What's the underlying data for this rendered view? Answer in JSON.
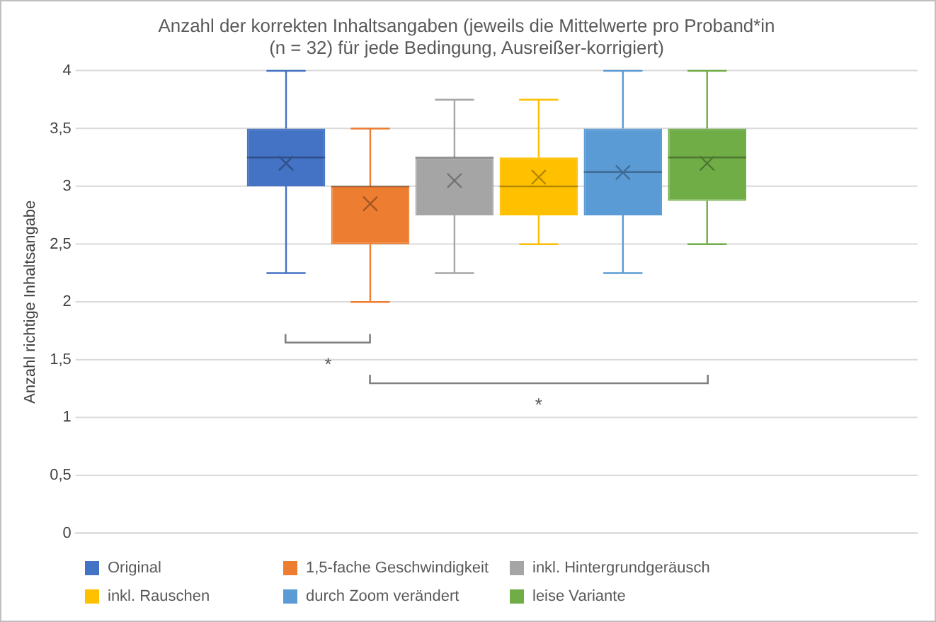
{
  "chart_data": {
    "type": "box",
    "title": "Anzahl der korrekten Inhaltsangaben (jeweils die Mittelwerte pro Proband*in\n(n = 32) für jede Bedingung, Ausreißer-korrigiert)",
    "ylabel": "Anzahl richtige Inhaltsangabe",
    "categories": [
      null
    ],
    "ylim": [
      0,
      4
    ],
    "yticks": [
      0,
      {
        "value": 0.5,
        "label": "0,5"
      },
      1,
      {
        "value": 1.5,
        "label": "1,5"
      },
      2,
      {
        "value": 2.5,
        "label": "2,5"
      },
      3,
      {
        "value": 3.5,
        "label": "3,5"
      },
      4
    ],
    "grid": "y",
    "legend": "bottom",
    "tick_labels": "y",
    "annotations": [
      "*",
      "*"
    ],
    "series": [
      {
        "name": "Original",
        "color": "#4472c4",
        "boxes": [
          {
            "low": 2.25,
            "q1": 3,
            "median": 3.25,
            "q3": 3.5,
            "high": 4,
            "mean": 3.2
          }
        ]
      },
      {
        "name": "1,5-fache Geschwindigkeit",
        "color": "#ed7d31",
        "boxes": [
          {
            "low": 2,
            "q1": 2.5,
            "median": 3,
            "q3": 3,
            "high": 3.5,
            "mean": 2.85
          }
        ]
      },
      {
        "name": "inkl. Hintergrundgeräusch",
        "color": "#a5a5a5",
        "boxes": [
          {
            "low": 2.25,
            "q1": 2.75,
            "median": 3.25,
            "q3": 3.25,
            "high": 3.75,
            "mean": 3.05
          }
        ]
      },
      {
        "name": "inkl. Rauschen",
        "color": "#ffc000",
        "boxes": [
          {
            "low": 2.5,
            "q1": 2.75,
            "median": 3,
            "q3": 3.25,
            "high": 3.75,
            "mean": 3.08
          }
        ]
      },
      {
        "name": "durch Zoom verändert",
        "color": "#5b9bd5",
        "boxes": [
          {
            "low": 2.25,
            "q1": 2.75,
            "median": 3.125,
            "q3": 3.5,
            "high": 4,
            "mean": 3.12
          }
        ]
      },
      {
        "name": "leise Variante",
        "color": "#70ad47",
        "boxes": [
          {
            "low": 2.5,
            "q1": 2.875,
            "median": 3.25,
            "q3": 3.5,
            "high": 4,
            "mean": 3.2
          }
        ]
      }
    ]
  }
}
